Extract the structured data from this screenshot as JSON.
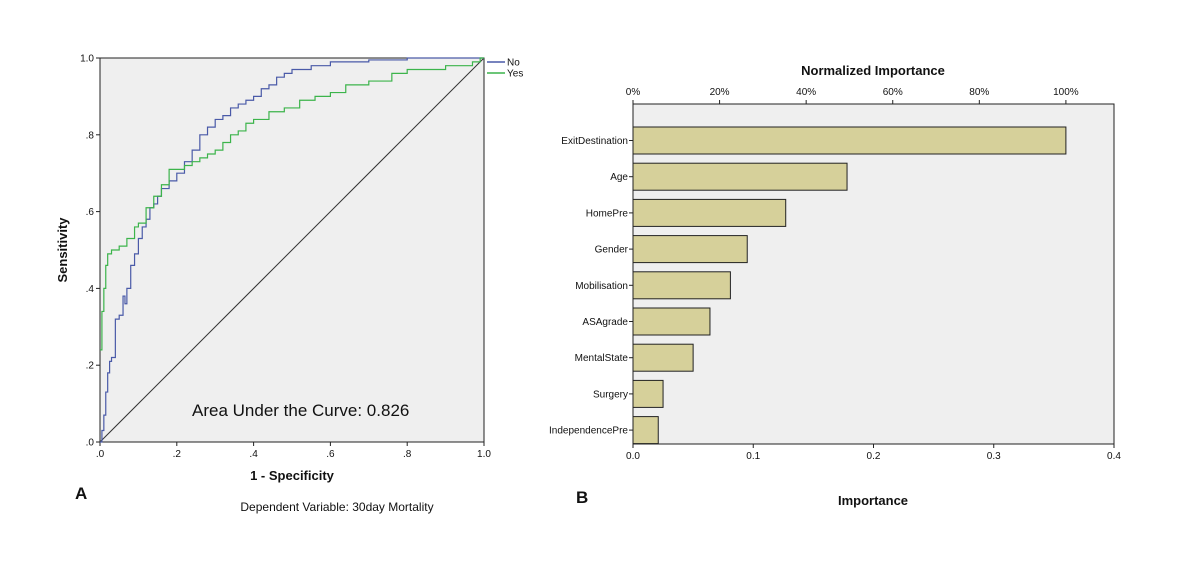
{
  "figure": {
    "panel_a_letter": "A",
    "panel_b_letter": "B",
    "dependent_variable_note": "Dependent Variable: 30day Mortality"
  },
  "chart_data": [
    {
      "type": "line",
      "panel": "A",
      "title": "",
      "xlabel": "1 - Specificity",
      "ylabel": "Sensitivity",
      "xlim": [
        0,
        1
      ],
      "ylim": [
        0,
        1
      ],
      "x_ticks": [
        0,
        0.2,
        0.4,
        0.6,
        0.8,
        1.0
      ],
      "x_tick_labels": [
        ".0",
        ".2",
        ".4",
        ".6",
        ".8",
        "1.0"
      ],
      "y_ticks": [
        0,
        0.2,
        0.4,
        0.6,
        0.8,
        1.0
      ],
      "y_tick_labels": [
        ".0",
        ".2",
        ".4",
        ".6",
        ".8",
        "1.0"
      ],
      "annotation": "Area Under the Curve: 0.826",
      "legend_position": "top-right-outside",
      "reference_line": [
        [
          0,
          0
        ],
        [
          1,
          1
        ]
      ],
      "series": [
        {
          "name": "No",
          "color": "#4a5aa8",
          "x": [
            0,
            0.005,
            0.01,
            0.015,
            0.02,
            0.025,
            0.03,
            0.04,
            0.05,
            0.06,
            0.065,
            0.07,
            0.08,
            0.09,
            0.1,
            0.11,
            0.12,
            0.13,
            0.14,
            0.15,
            0.16,
            0.18,
            0.2,
            0.22,
            0.24,
            0.26,
            0.28,
            0.3,
            0.32,
            0.34,
            0.36,
            0.38,
            0.4,
            0.42,
            0.44,
            0.46,
            0.48,
            0.5,
            0.55,
            0.6,
            0.7,
            0.8,
            0.9,
            1.0
          ],
          "y": [
            0,
            0.03,
            0.07,
            0.13,
            0.18,
            0.21,
            0.22,
            0.32,
            0.33,
            0.38,
            0.36,
            0.4,
            0.46,
            0.49,
            0.53,
            0.56,
            0.58,
            0.61,
            0.62,
            0.64,
            0.66,
            0.68,
            0.7,
            0.73,
            0.76,
            0.8,
            0.82,
            0.84,
            0.85,
            0.87,
            0.88,
            0.89,
            0.9,
            0.92,
            0.93,
            0.95,
            0.96,
            0.97,
            0.98,
            0.99,
            0.995,
            1.0,
            1.0,
            1.0
          ]
        },
        {
          "name": "Yes",
          "color": "#3cb44b",
          "x": [
            0,
            0.005,
            0.01,
            0.015,
            0.02,
            0.03,
            0.05,
            0.07,
            0.09,
            0.1,
            0.12,
            0.14,
            0.16,
            0.18,
            0.2,
            0.22,
            0.24,
            0.26,
            0.28,
            0.3,
            0.32,
            0.34,
            0.36,
            0.38,
            0.4,
            0.44,
            0.48,
            0.52,
            0.56,
            0.6,
            0.64,
            0.7,
            0.76,
            0.8,
            0.86,
            0.9,
            0.94,
            0.97,
            0.99,
            1.0
          ],
          "y": [
            0.24,
            0.34,
            0.4,
            0.46,
            0.49,
            0.5,
            0.51,
            0.53,
            0.56,
            0.57,
            0.61,
            0.64,
            0.67,
            0.71,
            0.71,
            0.72,
            0.73,
            0.74,
            0.75,
            0.76,
            0.78,
            0.8,
            0.81,
            0.83,
            0.84,
            0.86,
            0.87,
            0.89,
            0.9,
            0.91,
            0.93,
            0.94,
            0.96,
            0.97,
            0.97,
            0.98,
            0.98,
            0.99,
            1.0,
            1.0
          ]
        }
      ]
    },
    {
      "type": "bar",
      "panel": "B",
      "orientation": "horizontal",
      "title": "Normalized Importance",
      "xlabel": "Importance",
      "ylabel": "",
      "xlim": [
        0,
        0.4
      ],
      "x_ticks": [
        0,
        0.1,
        0.2,
        0.3,
        0.4
      ],
      "x_tick_labels": [
        "0.0",
        "0.1",
        "0.2",
        "0.3",
        "0.4"
      ],
      "top_ticks_percent": [
        0,
        20,
        40,
        60,
        80,
        100
      ],
      "top_tick_labels": [
        "0%",
        "20%",
        "40%",
        "60%",
        "80%",
        "100%"
      ],
      "bar_color": "#d6d09a",
      "categories": [
        "ExitDestination",
        "Age",
        "HomePre",
        "Gender",
        "Mobilisation",
        "ASAgrade",
        "MentalState",
        "Surgery",
        "IndependencePre"
      ],
      "values": [
        0.36,
        0.178,
        0.127,
        0.095,
        0.081,
        0.064,
        0.05,
        0.025,
        0.021
      ]
    }
  ]
}
